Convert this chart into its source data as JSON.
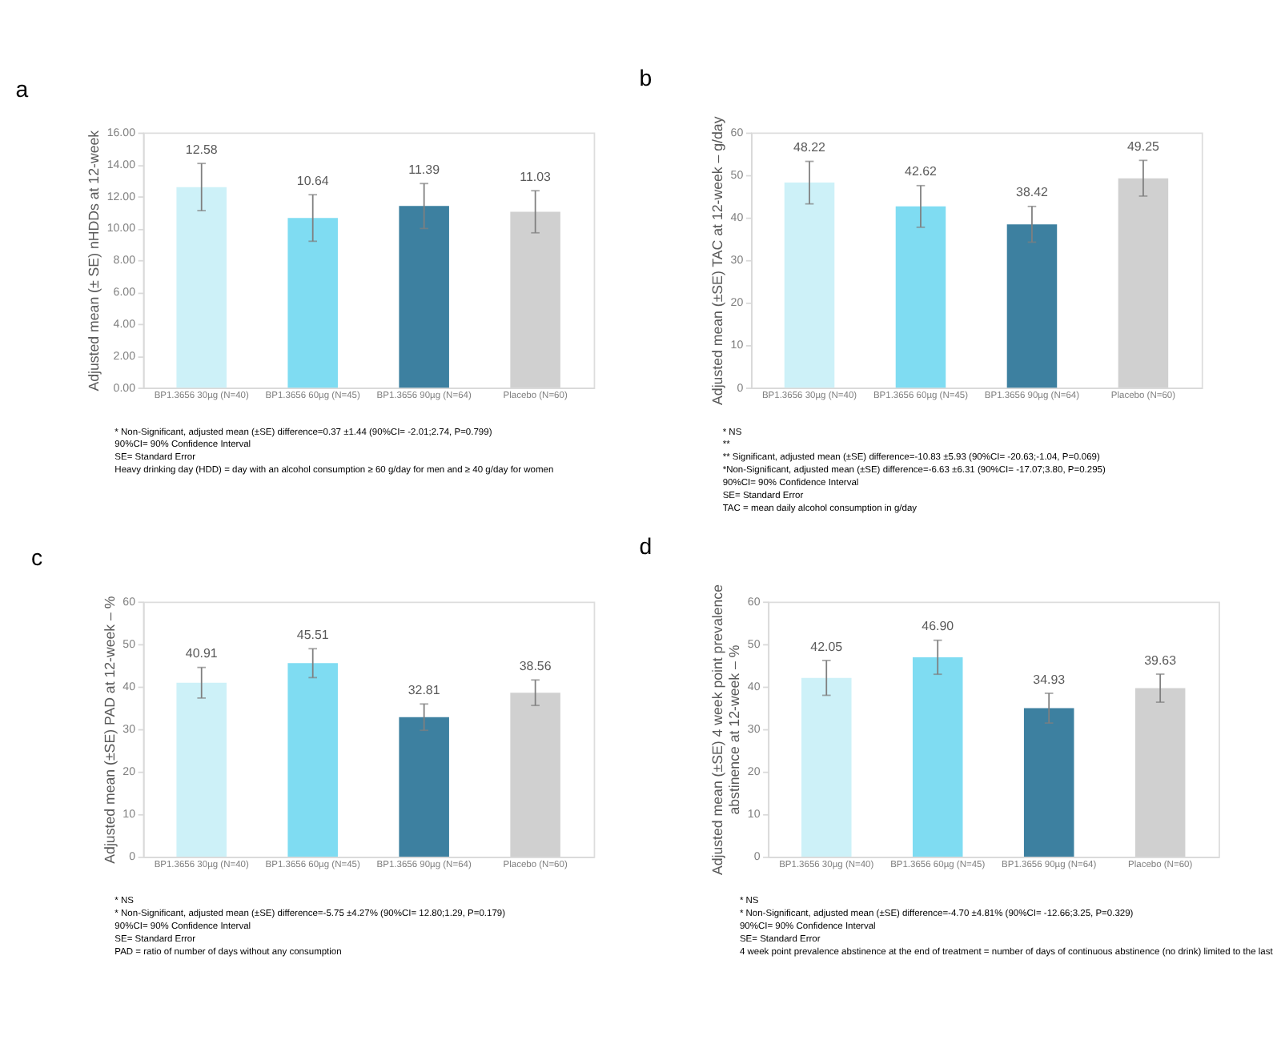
{
  "chart_data": [
    {
      "type": "bar",
      "title": "a",
      "ylabel": "Adjusted mean (± SE) nHDDs at 12-week",
      "categories": [
        "BP1.3656 30µg (N=40)",
        "BP1.3656 60µg (N=45)",
        "BP1.3656 90µg (N=64)",
        "Placebo (N=60)"
      ],
      "values": [
        12.58,
        10.64,
        11.39,
        11.03
      ],
      "value_labels": [
        "12.58",
        "10.64",
        "11.39",
        "11.03"
      ],
      "errors": [
        1.48,
        1.46,
        1.41,
        1.32
      ],
      "colors": [
        "#cdf1f8",
        "#7fdcf2",
        "#3d80a0",
        "#d0d0d0"
      ],
      "ylim": [
        0,
        16
      ],
      "yticks": [
        {
          "value": 0,
          "label": "0.00"
        },
        {
          "value": 2,
          "label": "2.00"
        },
        {
          "value": 4,
          "label": "4.00"
        },
        {
          "value": 6,
          "label": "6.00"
        },
        {
          "value": 8,
          "label": "8.00"
        },
        {
          "value": 10,
          "label": "10.00"
        },
        {
          "value": 12,
          "label": "12.00"
        },
        {
          "value": 14,
          "label": "14.00"
        },
        {
          "value": 16,
          "label": "16.00"
        }
      ],
      "grid": false,
      "annotations": [
        "* Non-Significant, adjusted mean (±SE) difference=0.37 ±1.44 (90%CI= -2.01;2.74, P=0.799)",
        "90%CI= 90% Confidence Interval",
        "SE= Standard Error",
        "Heavy drinking day (HDD) = day with an alcohol consumption ≥ 60 g/day for men and ≥ 40 g/day for women"
      ]
    },
    {
      "type": "bar",
      "title": "b",
      "ylabel": "Adjusted mean (±SE) TAC at 12-week – g/day",
      "categories": [
        "BP1.3656 30µg (N=40)",
        "BP1.3656 60µg (N=45)",
        "BP1.3656 90µg (N=64)",
        "Placebo (N=60)"
      ],
      "values": [
        48.22,
        42.62,
        38.42,
        49.25
      ],
      "value_labels": [
        "48.22",
        "42.62",
        "38.42",
        "49.25"
      ],
      "errors": [
        5.0,
        4.9,
        4.2,
        4.2
      ],
      "colors": [
        "#cdf1f8",
        "#7fdcf2",
        "#3d80a0",
        "#d0d0d0"
      ],
      "ylim": [
        0,
        60
      ],
      "yticks": [
        0,
        10,
        20,
        30,
        40,
        50,
        60
      ],
      "grid": false,
      "annotations": [
        "* NS",
        "**",
        "** Significant, adjusted mean (±SE) difference=-10.83 ±5.93 (90%CI= -20.63;-1.04, P=0.069)",
        "*Non-Significant, adjusted mean (±SE) difference=-6.63 ±6.31 (90%CI= -17.07;3.80, P=0.295)",
        "90%CI= 90% Confidence Interval",
        "SE= Standard Error",
        "TAC = mean daily alcohol consumption in g/day"
      ]
    },
    {
      "type": "bar",
      "title": "c",
      "ylabel": "Adjusted mean (±SE) PAD at 12-week – %",
      "categories": [
        "BP1.3656 30µg (N=40)",
        "BP1.3656 60µg (N=45)",
        "BP1.3656 90µg (N=64)",
        "Placebo (N=60)"
      ],
      "values": [
        40.91,
        45.51,
        32.81,
        38.56
      ],
      "value_labels": [
        "40.91",
        "45.51",
        "32.81",
        "38.56"
      ],
      "errors": [
        3.6,
        3.4,
        3.1,
        3.0
      ],
      "colors": [
        "#cdf1f8",
        "#7fdcf2",
        "#3d80a0",
        "#d0d0d0"
      ],
      "ylim": [
        0,
        60
      ],
      "yticks": [
        0,
        10,
        20,
        30,
        40,
        50,
        60
      ],
      "grid": false,
      "annotations": [
        "* NS",
        "* Non-Significant, adjusted mean (±SE) difference=-5.75 ±4.27% (90%CI= 12.80;1.29, P=0.179)",
        "90%CI= 90% Confidence Interval",
        "SE= Standard Error",
        "PAD = ratio of number of days without any consumption"
      ]
    },
    {
      "type": "bar",
      "title": "d",
      "ylabel": "Adjusted mean (±SE) 4 week point prevalence\nabstinence at 12-week – %",
      "categories": [
        "BP1.3656 30µg (N=40)",
        "BP1.3656 60µg (N=45)",
        "BP1.3656 90µg (N=64)",
        "Placebo (N=60)"
      ],
      "values": [
        42.05,
        46.9,
        34.93,
        39.63
      ],
      "value_labels": [
        "42.05",
        "46.90",
        "34.93",
        "39.63"
      ],
      "errors": [
        4.1,
        4.0,
        3.5,
        3.3
      ],
      "colors": [
        "#cdf1f8",
        "#7fdcf2",
        "#3d80a0",
        "#d0d0d0"
      ],
      "ylim": [
        0,
        60
      ],
      "yticks": [
        0,
        10,
        20,
        30,
        40,
        50,
        60
      ],
      "grid": false,
      "annotations": [
        "* NS",
        "* Non-Significant, adjusted mean (±SE) difference=-4.70 ±4.81% (90%CI= -12.66;3.25, P=0.329)",
        "90%CI= 90% Confidence Interval",
        "SE= Standard Error",
        "4 week point prevalence abstinence at the end of treatment = number of days of continuous abstinence (no drink) limited to the last"
      ]
    }
  ]
}
